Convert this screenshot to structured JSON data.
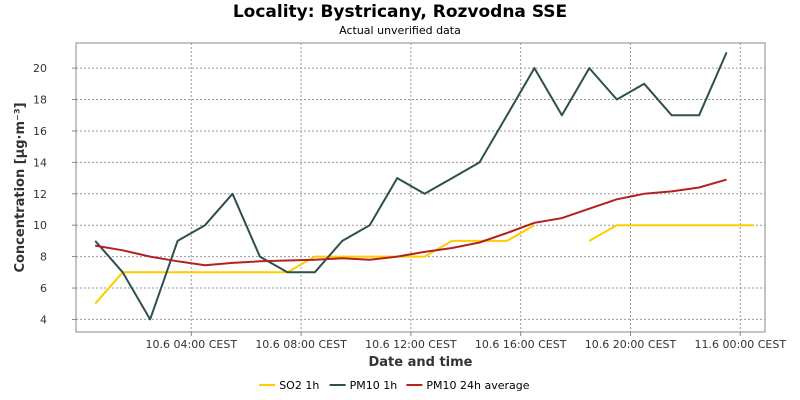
{
  "chart_data": {
    "type": "line",
    "title": "Locality: Bystricany, Rozvodna SSE",
    "subtitle": "Actual unverified data",
    "xlabel": "Date and time",
    "ylabel": "Concentration [µg·m⁻³]",
    "ylim": [
      3.2,
      21.6
    ],
    "y_ticks": [
      4,
      6,
      8,
      10,
      12,
      14,
      16,
      18,
      20
    ],
    "x_unit": "hour since 10.6 00:00 CEST",
    "xlim": [
      -0.2,
      24.9
    ],
    "x_ticks": [
      {
        "x": 4,
        "label": "10.6 04:00 CEST"
      },
      {
        "x": 8,
        "label": "10.6 08:00 CEST"
      },
      {
        "x": 12,
        "label": "10.6 12:00 CEST"
      },
      {
        "x": 16,
        "label": "10.6 16:00 CEST"
      },
      {
        "x": 20,
        "label": "10.6 20:00 CEST"
      },
      {
        "x": 24,
        "label": "11.6 00:00 CEST"
      }
    ],
    "grid": true,
    "legend_position": "bottom",
    "series": [
      {
        "name": "SO2 1h",
        "color": "#ffcc00",
        "points": [
          [
            0.5,
            5
          ],
          [
            1.5,
            7
          ],
          [
            2.5,
            7
          ],
          [
            3.5,
            7
          ],
          [
            4.5,
            7
          ],
          [
            5.5,
            7
          ],
          [
            6.5,
            7
          ],
          [
            7.5,
            7
          ],
          [
            8.5,
            8
          ],
          [
            9.5,
            8
          ],
          [
            10.5,
            8
          ],
          [
            11.5,
            8
          ],
          [
            12.5,
            8
          ],
          [
            13.5,
            9
          ],
          [
            14.5,
            9
          ],
          [
            15.5,
            9
          ],
          [
            16.5,
            10
          ],
          [
            null,
            null
          ],
          [
            18.5,
            9
          ],
          [
            19.5,
            10
          ],
          [
            20.5,
            10
          ],
          [
            21.5,
            10
          ],
          [
            22.5,
            10
          ],
          [
            23.5,
            10
          ],
          [
            24.5,
            10
          ]
        ]
      },
      {
        "name": "PM10 1h",
        "color": "#2f4f4f",
        "points": [
          [
            0.5,
            9
          ],
          [
            1.5,
            7
          ],
          [
            2.5,
            4
          ],
          [
            3.5,
            9
          ],
          [
            4.5,
            10
          ],
          [
            5.5,
            12
          ],
          [
            6.5,
            8
          ],
          [
            7.5,
            7
          ],
          [
            8.5,
            7
          ],
          [
            9.5,
            9
          ],
          [
            10.5,
            10
          ],
          [
            11.5,
            13
          ],
          [
            12.5,
            12
          ],
          [
            13.5,
            13
          ],
          [
            14.5,
            14
          ],
          [
            15.5,
            17
          ],
          [
            16.5,
            20
          ],
          [
            17.5,
            17
          ],
          [
            18.5,
            20
          ],
          [
            19.5,
            18
          ],
          [
            20.5,
            19
          ],
          [
            21.5,
            17
          ],
          [
            22.5,
            17
          ],
          [
            23.5,
            21
          ]
        ]
      },
      {
        "name": "PM10 24h average",
        "color": "#b22222",
        "points": [
          [
            0.5,
            8.7
          ],
          [
            1.5,
            8.4
          ],
          [
            2.5,
            8.0
          ],
          [
            3.5,
            7.7
          ],
          [
            4.5,
            7.45
          ],
          [
            5.5,
            7.6
          ],
          [
            6.5,
            7.7
          ],
          [
            7.5,
            7.75
          ],
          [
            8.5,
            7.8
          ],
          [
            9.5,
            7.9
          ],
          [
            10.5,
            7.8
          ],
          [
            11.5,
            8.0
          ],
          [
            12.5,
            8.3
          ],
          [
            13.5,
            8.55
          ],
          [
            14.5,
            8.9
          ],
          [
            15.5,
            9.5
          ],
          [
            16.5,
            10.15
          ],
          [
            17.5,
            10.45
          ],
          [
            18.5,
            11.05
          ],
          [
            19.5,
            11.65
          ],
          [
            20.5,
            12.0
          ],
          [
            21.5,
            12.15
          ],
          [
            22.5,
            12.4
          ],
          [
            23.5,
            12.9
          ]
        ]
      }
    ]
  }
}
